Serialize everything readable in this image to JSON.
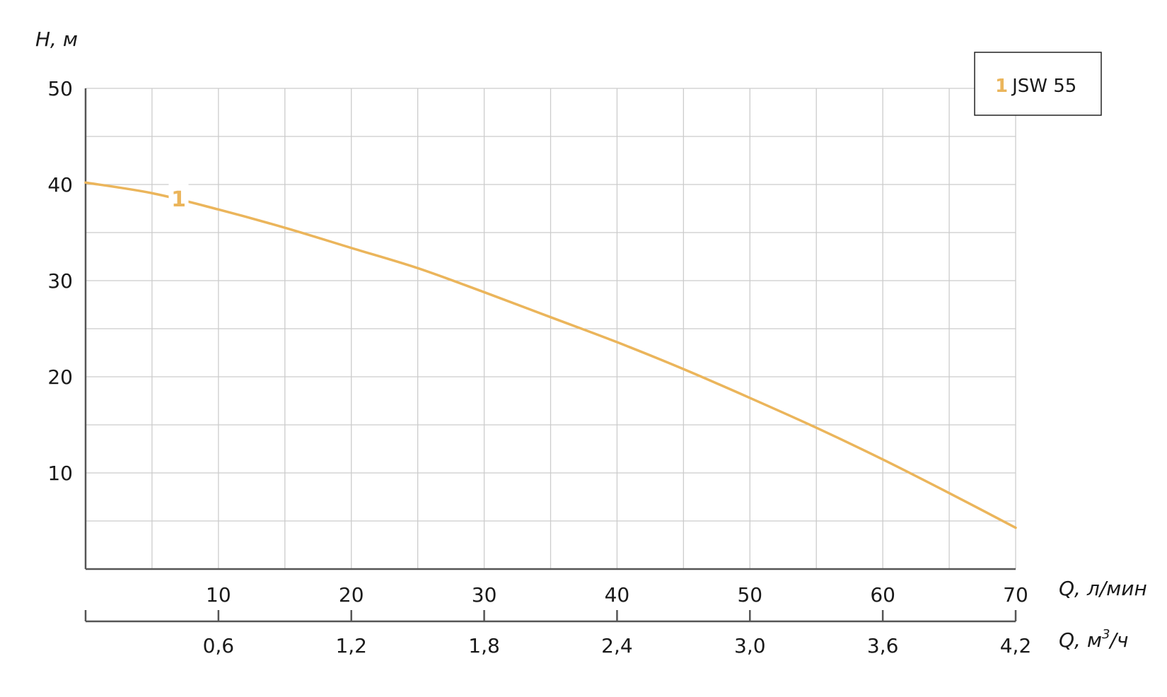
{
  "colors": {
    "curve": "#ebb55b",
    "axis": "#555555",
    "grid": "#cccccc",
    "text": "#1a1a1a"
  },
  "chart_data": {
    "type": "line",
    "y_axis": {
      "label": "H, м",
      "ticks": [
        "10",
        "20",
        "30",
        "40",
        "50"
      ],
      "range": [
        0,
        50
      ],
      "minor_step": 5
    },
    "x_axis": {
      "label": "Q, л/мин",
      "ticks": [
        "10",
        "20",
        "30",
        "40",
        "50",
        "60",
        "70"
      ],
      "range": [
        0,
        70
      ],
      "minor_step": 5
    },
    "x_axis_secondary": {
      "label_main": "Q, м",
      "label_sup": "3",
      "label_tail": "/ч",
      "ticks": [
        "0,6",
        "1,2",
        "1,8",
        "2,4",
        "3,0",
        "3,6",
        "4,2"
      ]
    },
    "grid": true,
    "legend": {
      "position": "top-right",
      "number": "1",
      "name": "JSW 55"
    },
    "series": [
      {
        "label": "1",
        "x": [
          0,
          5,
          10,
          15,
          20,
          25,
          30,
          35,
          40,
          45,
          50,
          55,
          60,
          65,
          70
        ],
        "y": [
          40.2,
          39.1,
          37.4,
          35.5,
          33.4,
          31.3,
          28.8,
          26.2,
          23.6,
          20.8,
          17.8,
          14.7,
          11.4,
          7.9,
          4.3
        ]
      }
    ]
  }
}
